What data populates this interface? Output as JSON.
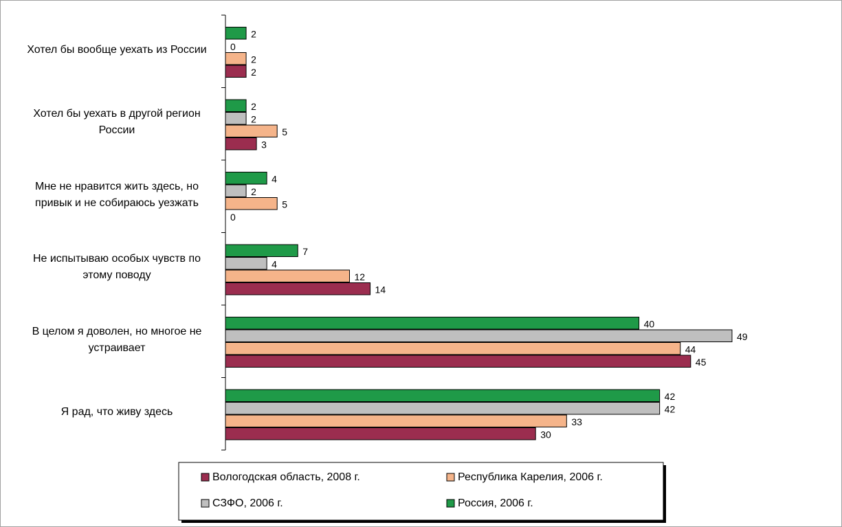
{
  "chart_data": {
    "type": "bar",
    "orientation": "horizontal",
    "categories": [
      "Хотел бы вообще уехать из России",
      "Хотел бы уехать в другой регион России",
      "Мне не нравится жить здесь, но привык и не собираюсь уезжать",
      "Не испытываю особых чувств по этому поводу",
      "В целом я доволен, но многое не устраивает",
      "Я рад, что живу здесь"
    ],
    "series": [
      {
        "name": "Вологодская область, 2008 г.",
        "color": "#9b2d4f",
        "values": [
          2,
          3,
          0,
          14,
          45,
          30
        ]
      },
      {
        "name": "Республика Карелия, 2006 г.",
        "color": "#f5b48a",
        "values": [
          2,
          5,
          5,
          12,
          44,
          33
        ]
      },
      {
        "name": "СЗФО, 2006 г.",
        "color": "#bfbfbf",
        "values": [
          0,
          2,
          2,
          4,
          49,
          42
        ]
      },
      {
        "name": "Россия, 2006 г.",
        "color": "#1f9a48",
        "values": [
          2,
          2,
          4,
          7,
          40,
          42
        ]
      }
    ],
    "xlim": [
      0,
      50
    ],
    "legend": "bottom"
  }
}
